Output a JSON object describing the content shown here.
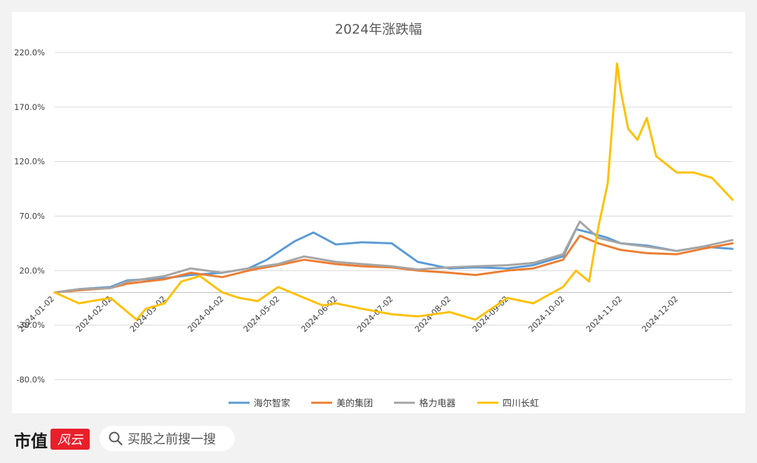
{
  "chart_data": {
    "type": "line",
    "title": "2024年涨跌幅",
    "x_ticks": [
      "2024-01-02",
      "2024-02-02",
      "2024-03-02",
      "2024-04-02",
      "2024-05-02",
      "2024-06-02",
      "2024-07-02",
      "2024-08-02",
      "2024-09-02",
      "2024-10-02",
      "2024-11-02",
      "2024-12-02"
    ],
    "y_ticks": [
      "220.0%",
      "170.0%",
      "120.0%",
      "70.0%",
      "20.0%",
      "-30.0%",
      "-80.0%"
    ],
    "ylim": [
      -80,
      220
    ],
    "y_unit": "%",
    "x_start": "2024-01-02",
    "x_end": "2024-12-31",
    "legend_position": "bottom",
    "series": [
      {
        "name": "海尔智家",
        "color": "#5b9bd5",
        "x": [
          "2024-01-02",
          "2024-01-15",
          "2024-02-01",
          "2024-02-10",
          "2024-03-01",
          "2024-03-15",
          "2024-04-01",
          "2024-04-15",
          "2024-04-25",
          "2024-05-02",
          "2024-05-10",
          "2024-05-20",
          "2024-06-01",
          "2024-06-15",
          "2024-07-01",
          "2024-07-15",
          "2024-08-01",
          "2024-08-15",
          "2024-09-01",
          "2024-09-15",
          "2024-10-01",
          "2024-10-08",
          "2024-10-15",
          "2024-10-25",
          "2024-11-01",
          "2024-11-15",
          "2024-12-01",
          "2024-12-15",
          "2024-12-31"
        ],
        "y": [
          0,
          3,
          5,
          11,
          13,
          16,
          18,
          22,
          30,
          38,
          47,
          55,
          44,
          46,
          45,
          28,
          22,
          23,
          22,
          25,
          33,
          58,
          55,
          50,
          45,
          43,
          38,
          42,
          40
        ]
      },
      {
        "name": "美的集团",
        "color": "#ed7d31",
        "x": [
          "2024-01-02",
          "2024-01-15",
          "2024-02-01",
          "2024-02-10",
          "2024-03-01",
          "2024-03-15",
          "2024-04-01",
          "2024-04-15",
          "2024-05-01",
          "2024-05-15",
          "2024-06-01",
          "2024-06-15",
          "2024-07-01",
          "2024-07-15",
          "2024-08-01",
          "2024-08-15",
          "2024-09-01",
          "2024-09-15",
          "2024-10-01",
          "2024-10-10",
          "2024-10-20",
          "2024-11-01",
          "2024-11-15",
          "2024-12-01",
          "2024-12-15",
          "2024-12-31"
        ],
        "y": [
          0,
          2,
          4,
          8,
          12,
          18,
          14,
          20,
          25,
          30,
          26,
          24,
          23,
          20,
          18,
          16,
          20,
          22,
          30,
          52,
          45,
          39,
          36,
          35,
          40,
          45
        ]
      },
      {
        "name": "格力电器",
        "color": "#a5a5a5",
        "x": [
          "2024-01-02",
          "2024-01-15",
          "2024-02-01",
          "2024-02-10",
          "2024-03-01",
          "2024-03-15",
          "2024-04-01",
          "2024-04-15",
          "2024-05-01",
          "2024-05-15",
          "2024-06-01",
          "2024-06-15",
          "2024-07-01",
          "2024-07-15",
          "2024-08-01",
          "2024-08-15",
          "2024-09-01",
          "2024-09-15",
          "2024-10-01",
          "2024-10-10",
          "2024-10-20",
          "2024-11-01",
          "2024-11-15",
          "2024-12-01",
          "2024-12-15",
          "2024-12-31"
        ],
        "y": [
          0,
          3,
          4,
          10,
          15,
          22,
          18,
          22,
          26,
          33,
          28,
          26,
          24,
          21,
          23,
          24,
          25,
          27,
          35,
          65,
          50,
          45,
          42,
          38,
          42,
          48
        ]
      },
      {
        "name": "四川长虹",
        "color": "#ffc000",
        "x": [
          "2024-01-02",
          "2024-01-15",
          "2024-02-01",
          "2024-02-15",
          "2024-02-20",
          "2024-03-01",
          "2024-03-10",
          "2024-03-20",
          "2024-04-01",
          "2024-04-10",
          "2024-04-20",
          "2024-05-01",
          "2024-05-15",
          "2024-05-25",
          "2024-06-01",
          "2024-06-15",
          "2024-07-01",
          "2024-07-15",
          "2024-08-01",
          "2024-08-15",
          "2024-09-01",
          "2024-09-15",
          "2024-10-01",
          "2024-10-08",
          "2024-10-15",
          "2024-10-20",
          "2024-10-25",
          "2024-10-30",
          "2024-11-01",
          "2024-11-05",
          "2024-11-10",
          "2024-11-15",
          "2024-11-20",
          "2024-12-01",
          "2024-12-10",
          "2024-12-20",
          "2024-12-31"
        ],
        "y": [
          0,
          -10,
          -5,
          -25,
          -15,
          -10,
          10,
          15,
          0,
          -5,
          -8,
          5,
          -5,
          -12,
          -10,
          -15,
          -20,
          -22,
          -18,
          -25,
          -5,
          -10,
          5,
          20,
          10,
          60,
          100,
          210,
          185,
          150,
          140,
          160,
          125,
          110,
          110,
          105,
          85
        ]
      }
    ]
  },
  "footer": {
    "logo_text": "市值",
    "logo_badge": "风云",
    "search_placeholder": "买股之前搜一搜"
  }
}
